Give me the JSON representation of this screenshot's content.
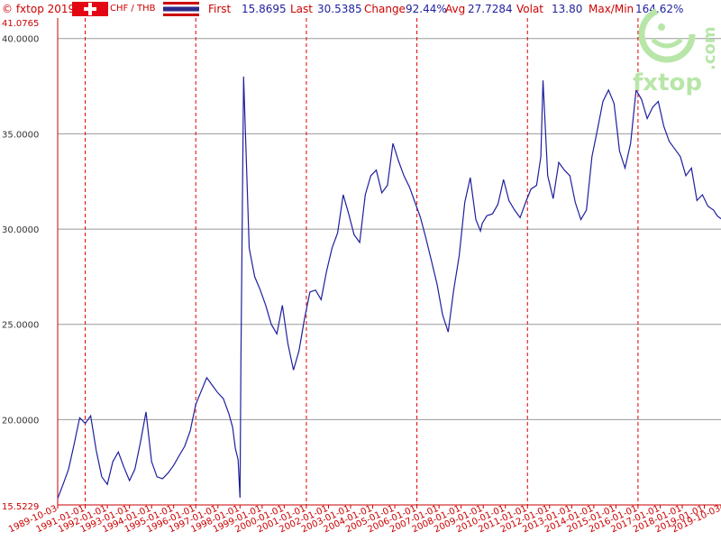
{
  "header": {
    "copyright": "© fxtop 2019",
    "pair": "CHF / THB",
    "first_label": "First",
    "first_value": "15.8695",
    "last_label": "Last",
    "last_value": "30.5385",
    "change_label": "Change",
    "change_value": "92.44%",
    "avg_label": "Avg",
    "avg_value": "27.7284",
    "volat_label": "Volat",
    "volat_value": "13.80",
    "maxmin_label": "Max/Min",
    "maxmin_value": "164.62%"
  },
  "flags": {
    "left": "switzerland-flag-icon",
    "right": "thailand-flag-icon"
  },
  "logo": {
    "text": "fxtop",
    "domain": ".com"
  },
  "colors": {
    "line": "#1f1f9e",
    "axis": "#cc0000",
    "grid": "#999999",
    "year_grid": "#e00000"
  },
  "chart_data": {
    "type": "line",
    "title": "",
    "xlabel": "",
    "ylabel": "",
    "ylim": [
      15.5229,
      41.0765
    ],
    "xlim": [
      "1989-10-03",
      "2019-10-03"
    ],
    "y_min_label": "15.5229",
    "y_max_label": "41.0765",
    "y_ticks": [
      20,
      25,
      30,
      35,
      40
    ],
    "y_tick_labels": [
      "20.0000",
      "25.0000",
      "30.0000",
      "35.0000",
      "40.0000"
    ],
    "x_tick_labels": [
      "1989-10-03",
      "1991-01-01",
      "1992-01-01",
      "1993-01-01",
      "1994-01-01",
      "1995-01-01",
      "1996-01-01",
      "1997-01-01",
      "1998-01-01",
      "1999-01-01",
      "2000-01-01",
      "2001-01-01",
      "2002-01-01",
      "2003-01-01",
      "2004-01-01",
      "2005-01-01",
      "2006-01-01",
      "2007-01-01",
      "2008-01-01",
      "2009-01-01",
      "2010-01-01",
      "2011-01-01",
      "2012-01-01",
      "2013-01-01",
      "2014-01-01",
      "2015-01-01",
      "2016-01-01",
      "2017-01-01",
      "2018-01-01",
      "2019-01-01",
      "2019-10-03"
    ],
    "highlighted_years": [
      "1991-01-01",
      "1996-01-01",
      "2001-01-01",
      "2006-01-01",
      "2011-01-01",
      "2016-01-01"
    ],
    "grid": true,
    "series": [
      {
        "x": [
          "1989-10-03",
          "1990-01-01",
          "1990-04-01",
          "1990-07-01",
          "1990-10-01",
          "1991-01-01",
          "1991-04-01",
          "1991-07-01",
          "1991-10-01",
          "1992-01-01",
          "1992-04-01",
          "1992-07-01",
          "1992-10-01",
          "1993-01-01",
          "1993-04-01",
          "1993-07-01",
          "1993-10-01",
          "1994-01-01",
          "1994-04-01",
          "1994-07-01",
          "1994-10-01",
          "1995-01-01",
          "1995-04-01",
          "1995-07-01",
          "1995-10-01",
          "1996-01-01",
          "1996-04-01",
          "1996-07-01",
          "1996-10-01",
          "1997-01-01",
          "1997-04-01",
          "1997-07-01",
          "1997-09-01",
          "1997-10-15",
          "1997-12-01",
          "1998-01-01",
          "1998-01-15",
          "1998-03-01",
          "1998-06-01",
          "1998-09-01",
          "1998-12-01",
          "1999-03-01",
          "1999-06-01",
          "1999-09-01",
          "1999-12-01",
          "2000-03-01",
          "2000-06-01",
          "2000-09-01",
          "2000-12-01",
          "2001-03-01",
          "2001-06-01",
          "2001-09-01",
          "2001-12-01",
          "2002-03-01",
          "2002-06-01",
          "2002-09-01",
          "2002-12-01",
          "2003-03-01",
          "2003-06-01",
          "2003-09-01",
          "2003-12-01",
          "2004-03-01",
          "2004-06-01",
          "2004-09-01",
          "2004-12-01",
          "2005-03-01",
          "2005-06-01",
          "2005-09-01",
          "2005-12-01",
          "2006-03-01",
          "2006-06-01",
          "2006-09-01",
          "2006-12-01",
          "2007-03-01",
          "2007-06-01",
          "2007-09-01",
          "2007-12-01",
          "2008-03-01",
          "2008-06-01",
          "2008-09-01",
          "2008-11-15",
          "2008-12-15",
          "2009-03-01",
          "2009-06-01",
          "2009-09-01",
          "2009-12-01",
          "2010-03-01",
          "2010-06-01",
          "2010-09-01",
          "2010-12-01",
          "2011-03-01",
          "2011-06-01",
          "2011-08-10",
          "2011-09-15",
          "2011-12-01",
          "2012-03-01",
          "2012-06-01",
          "2012-09-01",
          "2012-12-01",
          "2013-03-01",
          "2013-06-01",
          "2013-09-01",
          "2013-12-01",
          "2014-03-01",
          "2014-06-01",
          "2014-09-01",
          "2014-12-01",
          "2015-01-15",
          "2015-03-01",
          "2015-06-01",
          "2015-09-01",
          "2015-12-01",
          "2016-03-01",
          "2016-06-01",
          "2016-09-01",
          "2016-12-01",
          "2017-03-01",
          "2017-06-01",
          "2017-09-01",
          "2017-12-01",
          "2018-03-01",
          "2018-06-01",
          "2018-09-01",
          "2018-12-01",
          "2019-03-01",
          "2019-06-01",
          "2019-08-01",
          "2019-10-03"
        ],
        "y": [
          15.87,
          16.6,
          17.4,
          18.7,
          20.1,
          19.8,
          20.2,
          18.4,
          17.0,
          16.6,
          17.8,
          18.3,
          17.5,
          16.8,
          17.4,
          18.8,
          20.4,
          17.8,
          17.0,
          16.9,
          17.2,
          17.6,
          18.1,
          18.6,
          19.4,
          20.8,
          21.5,
          22.2,
          21.8,
          21.4,
          21.1,
          20.3,
          19.6,
          18.5,
          17.9,
          15.9,
          23.0,
          38.0,
          29.0,
          27.5,
          26.8,
          26.0,
          25.0,
          24.5,
          26.0,
          24.0,
          22.6,
          23.6,
          25.3,
          26.7,
          26.8,
          26.3,
          27.8,
          29.0,
          29.8,
          31.8,
          30.8,
          29.7,
          29.3,
          31.8,
          32.8,
          33.1,
          31.9,
          32.3,
          34.5,
          33.6,
          32.8,
          32.2,
          31.4,
          30.6,
          29.5,
          28.3,
          27.1,
          25.5,
          24.6,
          26.8,
          28.6,
          31.4,
          32.7,
          30.5,
          29.9,
          30.3,
          30.7,
          30.8,
          31.3,
          32.6,
          31.5,
          31.0,
          30.6,
          31.4,
          32.1,
          32.3,
          33.8,
          37.8,
          32.8,
          31.6,
          33.5,
          33.1,
          32.8,
          31.4,
          30.5,
          31.0,
          33.8,
          35.2,
          36.7,
          37.3,
          36.6,
          35.4,
          34.1,
          33.2,
          34.5,
          37.3,
          36.8,
          35.8,
          36.4,
          36.7,
          35.4,
          34.6,
          34.2,
          33.8,
          32.8,
          33.2,
          31.5,
          31.8,
          31.2,
          31.0,
          30.7,
          30.54
        ]
      }
    ]
  }
}
